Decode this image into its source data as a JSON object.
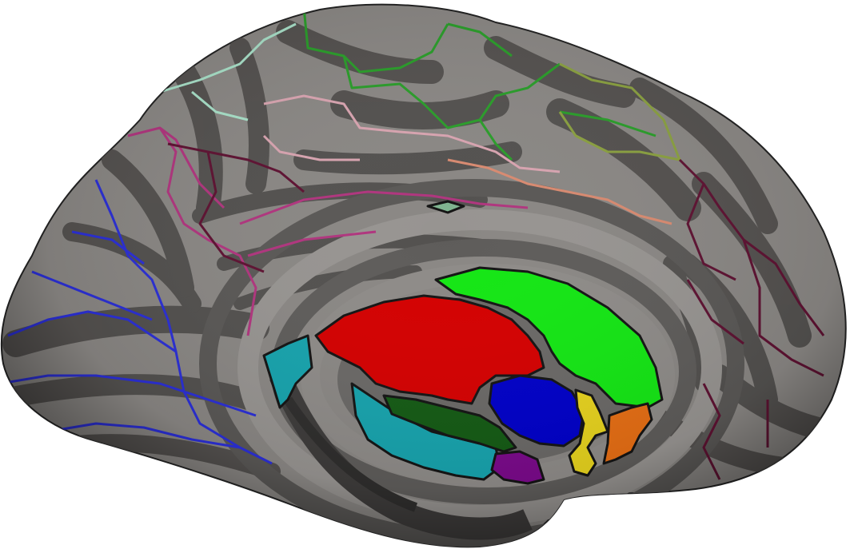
{
  "figure": {
    "subject": "brain-surface-medial",
    "palette": {
      "background": "#ffffff",
      "surface_light": "#8a8784",
      "surface_dark": "#4e4c4a",
      "red_region": "#d40000",
      "green_region": "#14e614",
      "blue_region": "#0000c8",
      "cyan_region": "#17a3ad",
      "dark_green_region": "#145a14",
      "purple_region": "#7a0a8a",
      "yellow_region": "#e6d21e",
      "orange_region": "#e66e14",
      "outline_black": "#141414",
      "outline_green": "#2a9d2a",
      "outline_blue": "#2b2fd6",
      "outline_magenta": "#b0357e",
      "outline_maroon": "#5e1232",
      "outline_pink": "#d8a4b0",
      "outline_mint": "#a8e0c8",
      "outline_salmon": "#d88a70",
      "outline_olive": "#8aa040"
    }
  }
}
